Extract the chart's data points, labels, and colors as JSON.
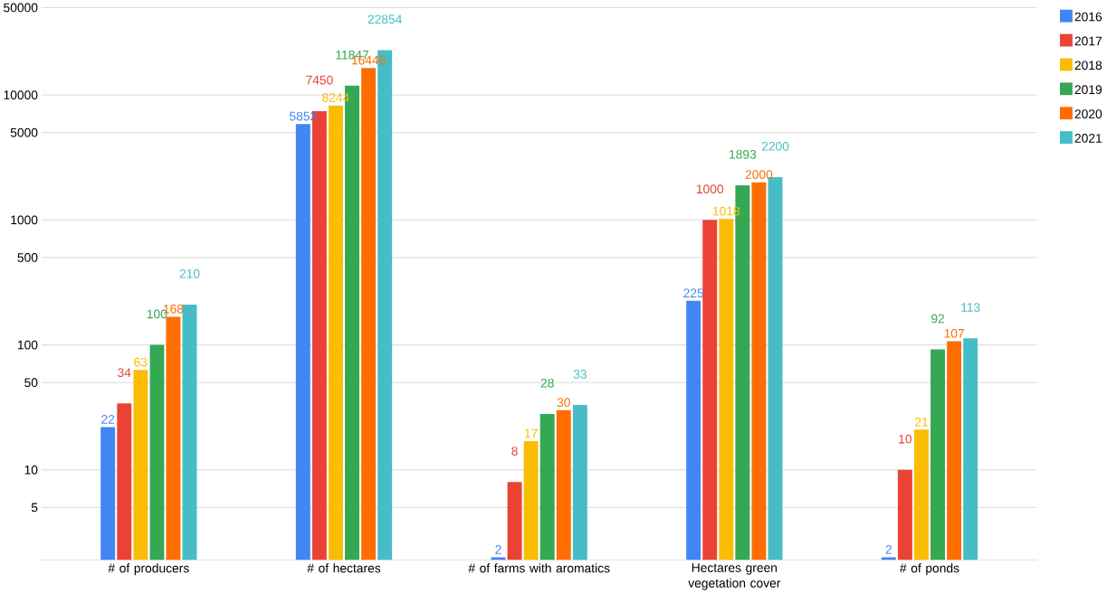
{
  "chart_data": {
    "type": "bar",
    "categories": [
      "# of producers",
      "# of hectares",
      "# of farms with aromatics",
      "Hectares green vegetation cover",
      "# of ponds"
    ],
    "series": [
      {
        "name": "2016",
        "color": "#4285f4",
        "values": [
          22,
          5852,
          2,
          225,
          2
        ]
      },
      {
        "name": "2017",
        "color": "#ea4335",
        "values": [
          34,
          7450,
          8,
          1000,
          10
        ]
      },
      {
        "name": "2018",
        "color": "#fbbc04",
        "values": [
          63,
          8244,
          17,
          1018,
          21
        ]
      },
      {
        "name": "2019",
        "color": "#34a853",
        "values": [
          100,
          11847,
          28,
          1893,
          92
        ]
      },
      {
        "name": "2020",
        "color": "#ff6d01",
        "values": [
          168,
          16446,
          30,
          2000,
          107
        ]
      },
      {
        "name": "2021",
        "color": "#46bdc6",
        "values": [
          210,
          22854,
          33,
          2200,
          113
        ]
      }
    ],
    "log": "y",
    "ylim": [
      1.9,
      50000
    ],
    "yticks": [
      5,
      10,
      50,
      100,
      500,
      1000,
      5000,
      10000,
      50000
    ],
    "grid": "y",
    "legend": "top right",
    "data_labels": true
  }
}
